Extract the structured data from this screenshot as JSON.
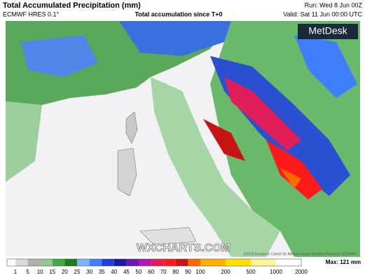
{
  "header": {
    "title": "Total Accumulated Precipitation (mm)",
    "model": "ECMWF HRES 0.1°",
    "subtitle": "Total accumulation since T+0",
    "run": "Run: Wed 8 Jun 00Z",
    "valid": "Valid: Sat 11 Jun 00:00 UTC"
  },
  "map": {
    "brand": "MetDesk",
    "watermark": "WXCHARTS.COM",
    "copyright": "©2022 European Centre for Medium-range Weather Forecasts (ECMWF)"
  },
  "legend": {
    "ticks": [
      1,
      5,
      10,
      15,
      20,
      25,
      30,
      35,
      40,
      45,
      50,
      60,
      70,
      80,
      90,
      100,
      200,
      500,
      1000,
      2000
    ],
    "colors": [
      "#ffffff",
      "#d9d9d9",
      "#b0b0b0",
      "#8fc98f",
      "#3fae3f",
      "#1e7d1e",
      "#7fb2ff",
      "#3f7fff",
      "#1f3fd8",
      "#1a1a9e",
      "#6a1aa8",
      "#b01ab0",
      "#e01e5a",
      "#ff1a1a",
      "#c81414",
      "#ff6a00",
      "#ffb000",
      "#ffe000",
      "#fff59a",
      "#ffffff"
    ],
    "max": "Max: 121 mm"
  }
}
